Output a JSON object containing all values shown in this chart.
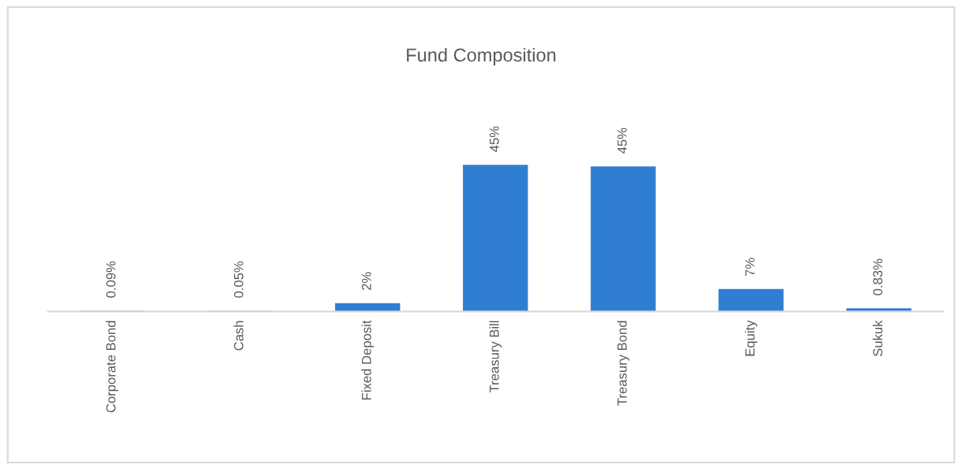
{
  "chart_data": {
    "type": "bar",
    "title": "Fund Composition",
    "categories": [
      "Corporate Bond",
      "Cash",
      "Fixed Deposit",
      "Treasury Bill",
      "Treasury Bond",
      "Equity",
      "Sukuk"
    ],
    "values": [
      0.09,
      0.05,
      2.4,
      45.3,
      44.8,
      6.8,
      0.83
    ],
    "value_labels": [
      "0.09%",
      "0.05%",
      "2%",
      "45%",
      "45%",
      "7%",
      "0.83%"
    ],
    "color": "#2f7ed4",
    "grid": false,
    "legend": false
  }
}
